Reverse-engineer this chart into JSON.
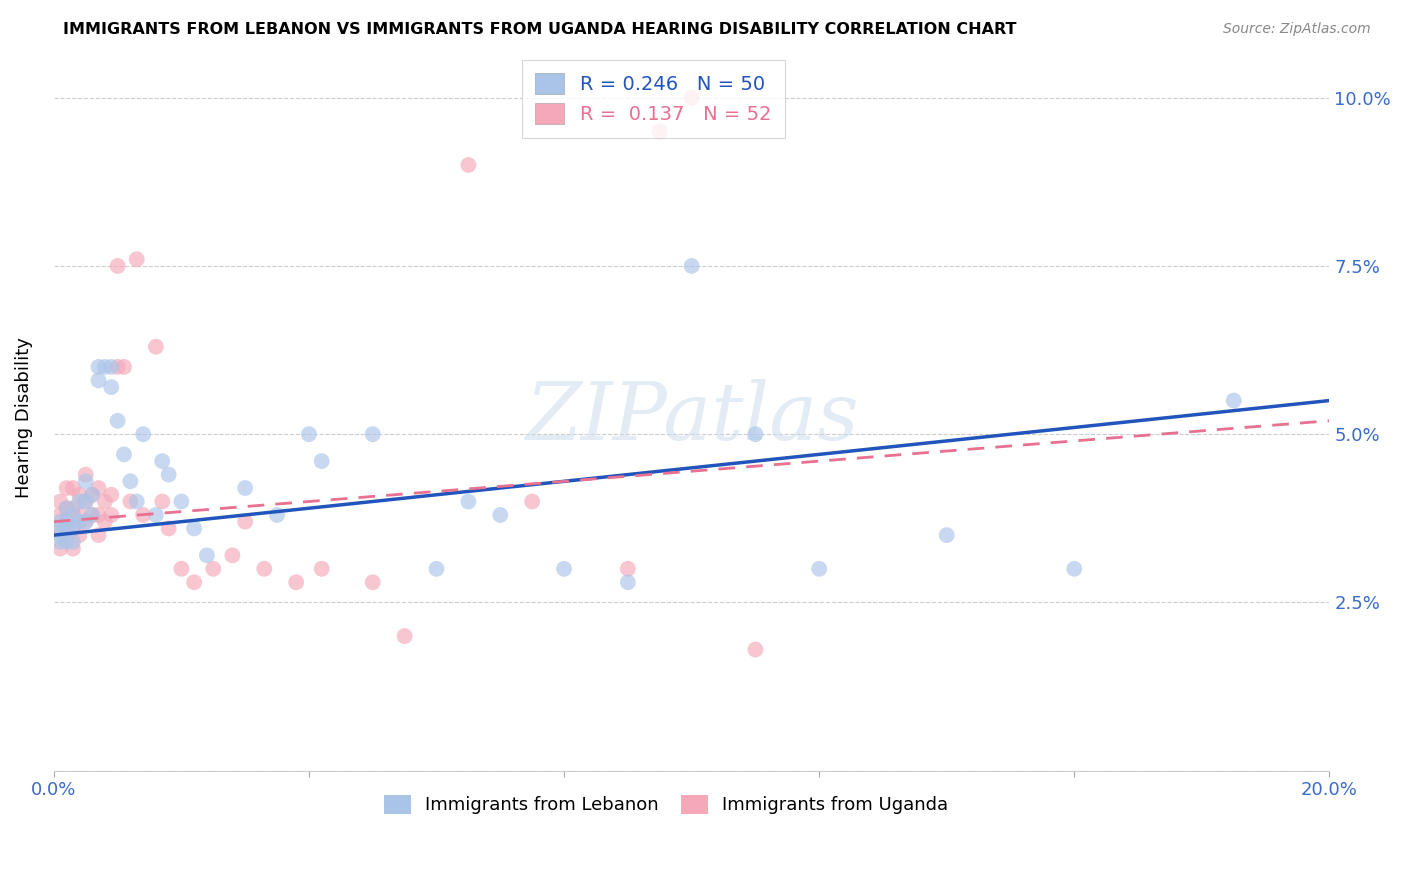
{
  "title": "IMMIGRANTS FROM LEBANON VS IMMIGRANTS FROM UGANDA HEARING DISABILITY CORRELATION CHART",
  "source": "Source: ZipAtlas.com",
  "ylabel": "Hearing Disability",
  "xlim": [
    0.0,
    0.2
  ],
  "ylim": [
    0.0,
    0.105
  ],
  "yticks": [
    0.0,
    0.025,
    0.05,
    0.075,
    0.1
  ],
  "yticklabels": [
    "",
    "2.5%",
    "5.0%",
    "7.5%",
    "10.0%"
  ],
  "lebanon_R": 0.246,
  "lebanon_N": 50,
  "uganda_R": 0.137,
  "uganda_N": 52,
  "lebanon_color": "#aac4e8",
  "uganda_color": "#f4a8b8",
  "lebanon_line_color": "#2255bb",
  "uganda_line_color": "#e87090",
  "legend_label_lebanon": "Immigrants from Lebanon",
  "legend_label_uganda": "Immigrants from Uganda",
  "lebanon_x": [
    0.001,
    0.001,
    0.001,
    0.001,
    0.002,
    0.002,
    0.002,
    0.002,
    0.003,
    0.003,
    0.003,
    0.004,
    0.004,
    0.005,
    0.005,
    0.005,
    0.006,
    0.006,
    0.007,
    0.007,
    0.008,
    0.009,
    0.009,
    0.01,
    0.011,
    0.012,
    0.013,
    0.014,
    0.016,
    0.017,
    0.018,
    0.02,
    0.022,
    0.024,
    0.03,
    0.035,
    0.04,
    0.042,
    0.05,
    0.06,
    0.065,
    0.07,
    0.08,
    0.09,
    0.1,
    0.11,
    0.12,
    0.14,
    0.16,
    0.185
  ],
  "lebanon_y": [
    0.037,
    0.036,
    0.035,
    0.034,
    0.039,
    0.037,
    0.036,
    0.034,
    0.038,
    0.036,
    0.034,
    0.04,
    0.037,
    0.043,
    0.04,
    0.037,
    0.041,
    0.038,
    0.06,
    0.058,
    0.06,
    0.06,
    0.057,
    0.052,
    0.047,
    0.043,
    0.04,
    0.05,
    0.038,
    0.046,
    0.044,
    0.04,
    0.036,
    0.032,
    0.042,
    0.038,
    0.05,
    0.046,
    0.05,
    0.03,
    0.04,
    0.038,
    0.03,
    0.028,
    0.075,
    0.05,
    0.03,
    0.035,
    0.03,
    0.055
  ],
  "uganda_x": [
    0.001,
    0.001,
    0.001,
    0.001,
    0.002,
    0.002,
    0.002,
    0.002,
    0.003,
    0.003,
    0.003,
    0.003,
    0.004,
    0.004,
    0.004,
    0.005,
    0.005,
    0.005,
    0.006,
    0.006,
    0.007,
    0.007,
    0.007,
    0.008,
    0.008,
    0.009,
    0.009,
    0.01,
    0.01,
    0.011,
    0.012,
    0.013,
    0.014,
    0.016,
    0.017,
    0.018,
    0.02,
    0.022,
    0.025,
    0.028,
    0.03,
    0.033,
    0.038,
    0.042,
    0.05,
    0.055,
    0.065,
    0.075,
    0.09,
    0.095,
    0.1,
    0.11
  ],
  "uganda_y": [
    0.04,
    0.038,
    0.036,
    0.033,
    0.042,
    0.039,
    0.037,
    0.035,
    0.042,
    0.039,
    0.036,
    0.033,
    0.041,
    0.038,
    0.035,
    0.044,
    0.04,
    0.037,
    0.041,
    0.038,
    0.042,
    0.038,
    0.035,
    0.04,
    0.037,
    0.041,
    0.038,
    0.06,
    0.075,
    0.06,
    0.04,
    0.076,
    0.038,
    0.063,
    0.04,
    0.036,
    0.03,
    0.028,
    0.03,
    0.032,
    0.037,
    0.03,
    0.028,
    0.03,
    0.028,
    0.02,
    0.09,
    0.04,
    0.03,
    0.095,
    0.1,
    0.018
  ],
  "leb_line_x": [
    0.0,
    0.2
  ],
  "leb_line_y": [
    0.035,
    0.055
  ],
  "uga_line_x": [
    0.0,
    0.2
  ],
  "uga_line_y": [
    0.037,
    0.052
  ]
}
